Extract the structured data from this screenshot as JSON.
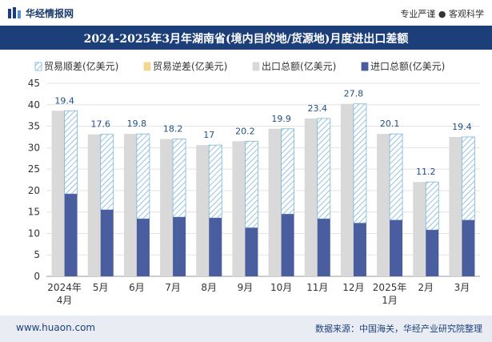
{
  "header": {
    "site_name": "华经情报网",
    "tagline": "专业严谨 ● 客观科学"
  },
  "footer": {
    "url": "www.huaon.com",
    "source": "数据来源：中国海关，华经产业研究院整理"
  },
  "colors": {
    "title_bar": "#1c3f7a",
    "export_total": "#d9d9d9",
    "import_total": "#4a5d9e",
    "trade_surplus_hatch": "#7ab4d6",
    "trade_deficit": "#f0d890",
    "data_label": "#1f4f86",
    "footer_bg": "#e9edf3"
  },
  "chart_data": {
    "type": "bar",
    "title": "2024-2025年3月年湖南省(境内目的地/货源地)月度进出口差额",
    "categories": [
      "2024年4月",
      "5月",
      "6月",
      "7月",
      "8月",
      "9月",
      "10月",
      "11月",
      "12月",
      "2025年1月",
      "2月",
      "3月"
    ],
    "ylim": [
      0,
      45
    ],
    "yticks": [
      0,
      5,
      10,
      15,
      20,
      25,
      30,
      35,
      40,
      45
    ],
    "grid": true,
    "legend_position": "top",
    "series": [
      {
        "name": "贸易顺差(亿美元)",
        "values": [
          19.4,
          17.6,
          19.8,
          18.2,
          17,
          20.2,
          19.9,
          23.4,
          27.8,
          20.1,
          11.2,
          19.4
        ]
      },
      {
        "name": "贸易逆差(亿美元)",
        "values": [
          0,
          0,
          0,
          0,
          0,
          0,
          0,
          0,
          0,
          0,
          0,
          0
        ]
      },
      {
        "name": "出口总额(亿美元)",
        "values": [
          38.6,
          33.1,
          33.2,
          32.0,
          30.6,
          31.5,
          34.4,
          36.8,
          40.2,
          33.2,
          22.0,
          32.5
        ]
      },
      {
        "name": "进口总额(亿美元)",
        "values": [
          19.2,
          15.5,
          13.4,
          13.8,
          13.6,
          11.3,
          14.5,
          13.4,
          12.4,
          13.1,
          10.8,
          13.1
        ]
      }
    ]
  }
}
